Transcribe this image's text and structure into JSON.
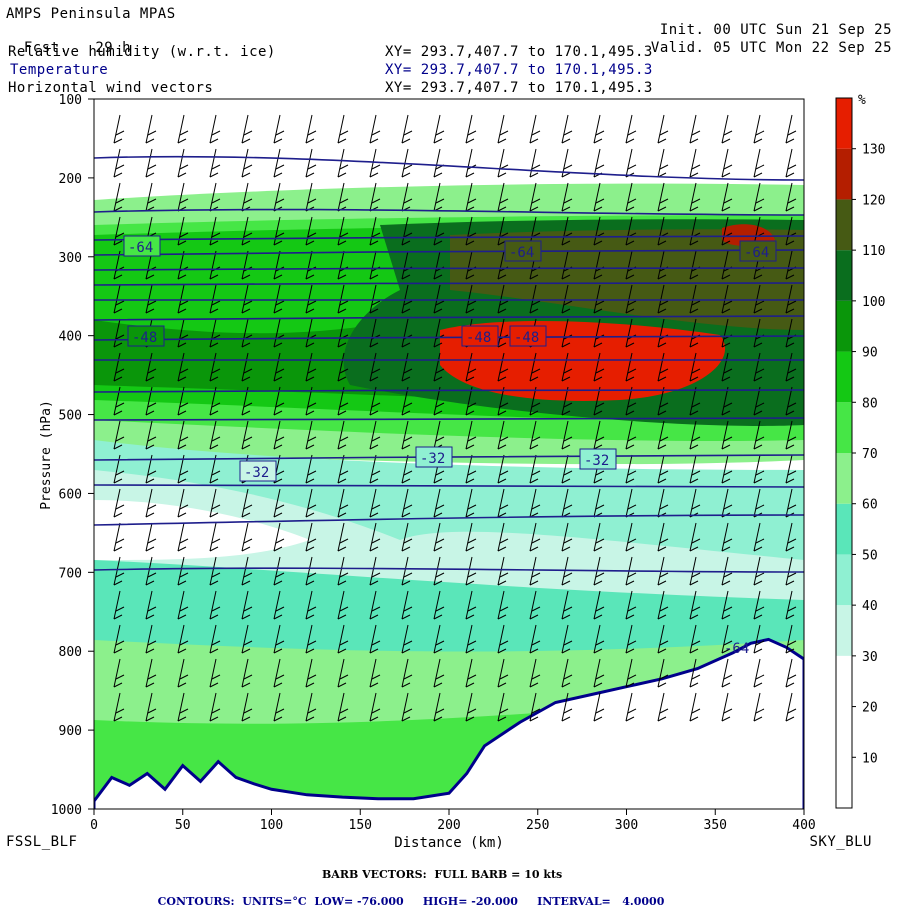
{
  "header": {
    "title": "AMPS Peninsula MPAS",
    "forecast_label": "Fcst.",
    "forecast_hours": "29 h",
    "init_label": "Init.",
    "init_time": "00 UTC Sun 21 Sep 25",
    "valid_label": "Valid.",
    "valid_time": "05 UTC Mon 22 Sep 25",
    "fields": [
      {
        "name": "Relative humidity (w.r.t. ice)",
        "xy": "XY= 293.7,407.7 to 170.1,495.3"
      },
      {
        "name": "Temperature",
        "xy": "XY= 293.7,407.7 to 170.1,495.3"
      },
      {
        "name": "Horizontal wind vectors",
        "xy": "XY= 293.7,407.7 to 170.1,495.3"
      }
    ]
  },
  "footer": {
    "left_station": "FSSL_BLF",
    "right_station": "SKY_BLU",
    "barb_note": "BARB VECTORS:  FULL BARB = 10 kts",
    "contour_label": "CONTOURS:",
    "units": "UNITS=°C",
    "low": "LOW= -76.000",
    "high": "HIGH= -20.000",
    "interval": "INTERVAL=   4.0000"
  },
  "chart_data": {
    "type": "heatmap",
    "xlabel": "Distance (km)",
    "ylabel": "Pressure (hPa)",
    "xlim": [
      0,
      400
    ],
    "ylim": [
      1000,
      100
    ],
    "x_ticks": [
      0,
      50,
      100,
      150,
      200,
      250,
      300,
      350,
      400
    ],
    "y_ticks": [
      100,
      200,
      300,
      400,
      500,
      600,
      700,
      800,
      900,
      1000
    ],
    "colorbar": {
      "unit": "%",
      "ticks": [
        10,
        20,
        30,
        40,
        50,
        60,
        70,
        80,
        90,
        100,
        110,
        120,
        130
      ],
      "levels": [
        0,
        10,
        20,
        30,
        40,
        50,
        60,
        70,
        80,
        90,
        100,
        110,
        120,
        130,
        140
      ],
      "colors": [
        "#ffffff",
        "#ffffff",
        "#ffffff",
        "#c8f5e6",
        "#8ff0d2",
        "#5ae6b9",
        "#8cf08c",
        "#46e646",
        "#14c814",
        "#0a960a",
        "#0a6e1e",
        "#465a14",
        "#b41e00",
        "#e61e00",
        "#ff0000"
      ]
    },
    "temperature_contours_label": [
      "-64",
      "-64",
      "-64",
      "-48",
      "-48",
      "-48",
      "-32",
      "-32",
      "-32",
      "-64"
    ],
    "terrain_surface_pressure_hPa": {
      "distance_km": [
        0,
        10,
        20,
        30,
        40,
        50,
        60,
        70,
        80,
        90,
        100,
        120,
        140,
        160,
        180,
        200,
        210,
        220,
        240,
        260,
        280,
        300,
        320,
        340,
        360,
        370,
        380,
        390,
        400
      ],
      "pressure": [
        990,
        960,
        970,
        955,
        975,
        945,
        965,
        940,
        960,
        968,
        975,
        982,
        985,
        987,
        987,
        980,
        955,
        920,
        890,
        865,
        855,
        845,
        835,
        822,
        802,
        790,
        785,
        795,
        810
      ]
    }
  }
}
